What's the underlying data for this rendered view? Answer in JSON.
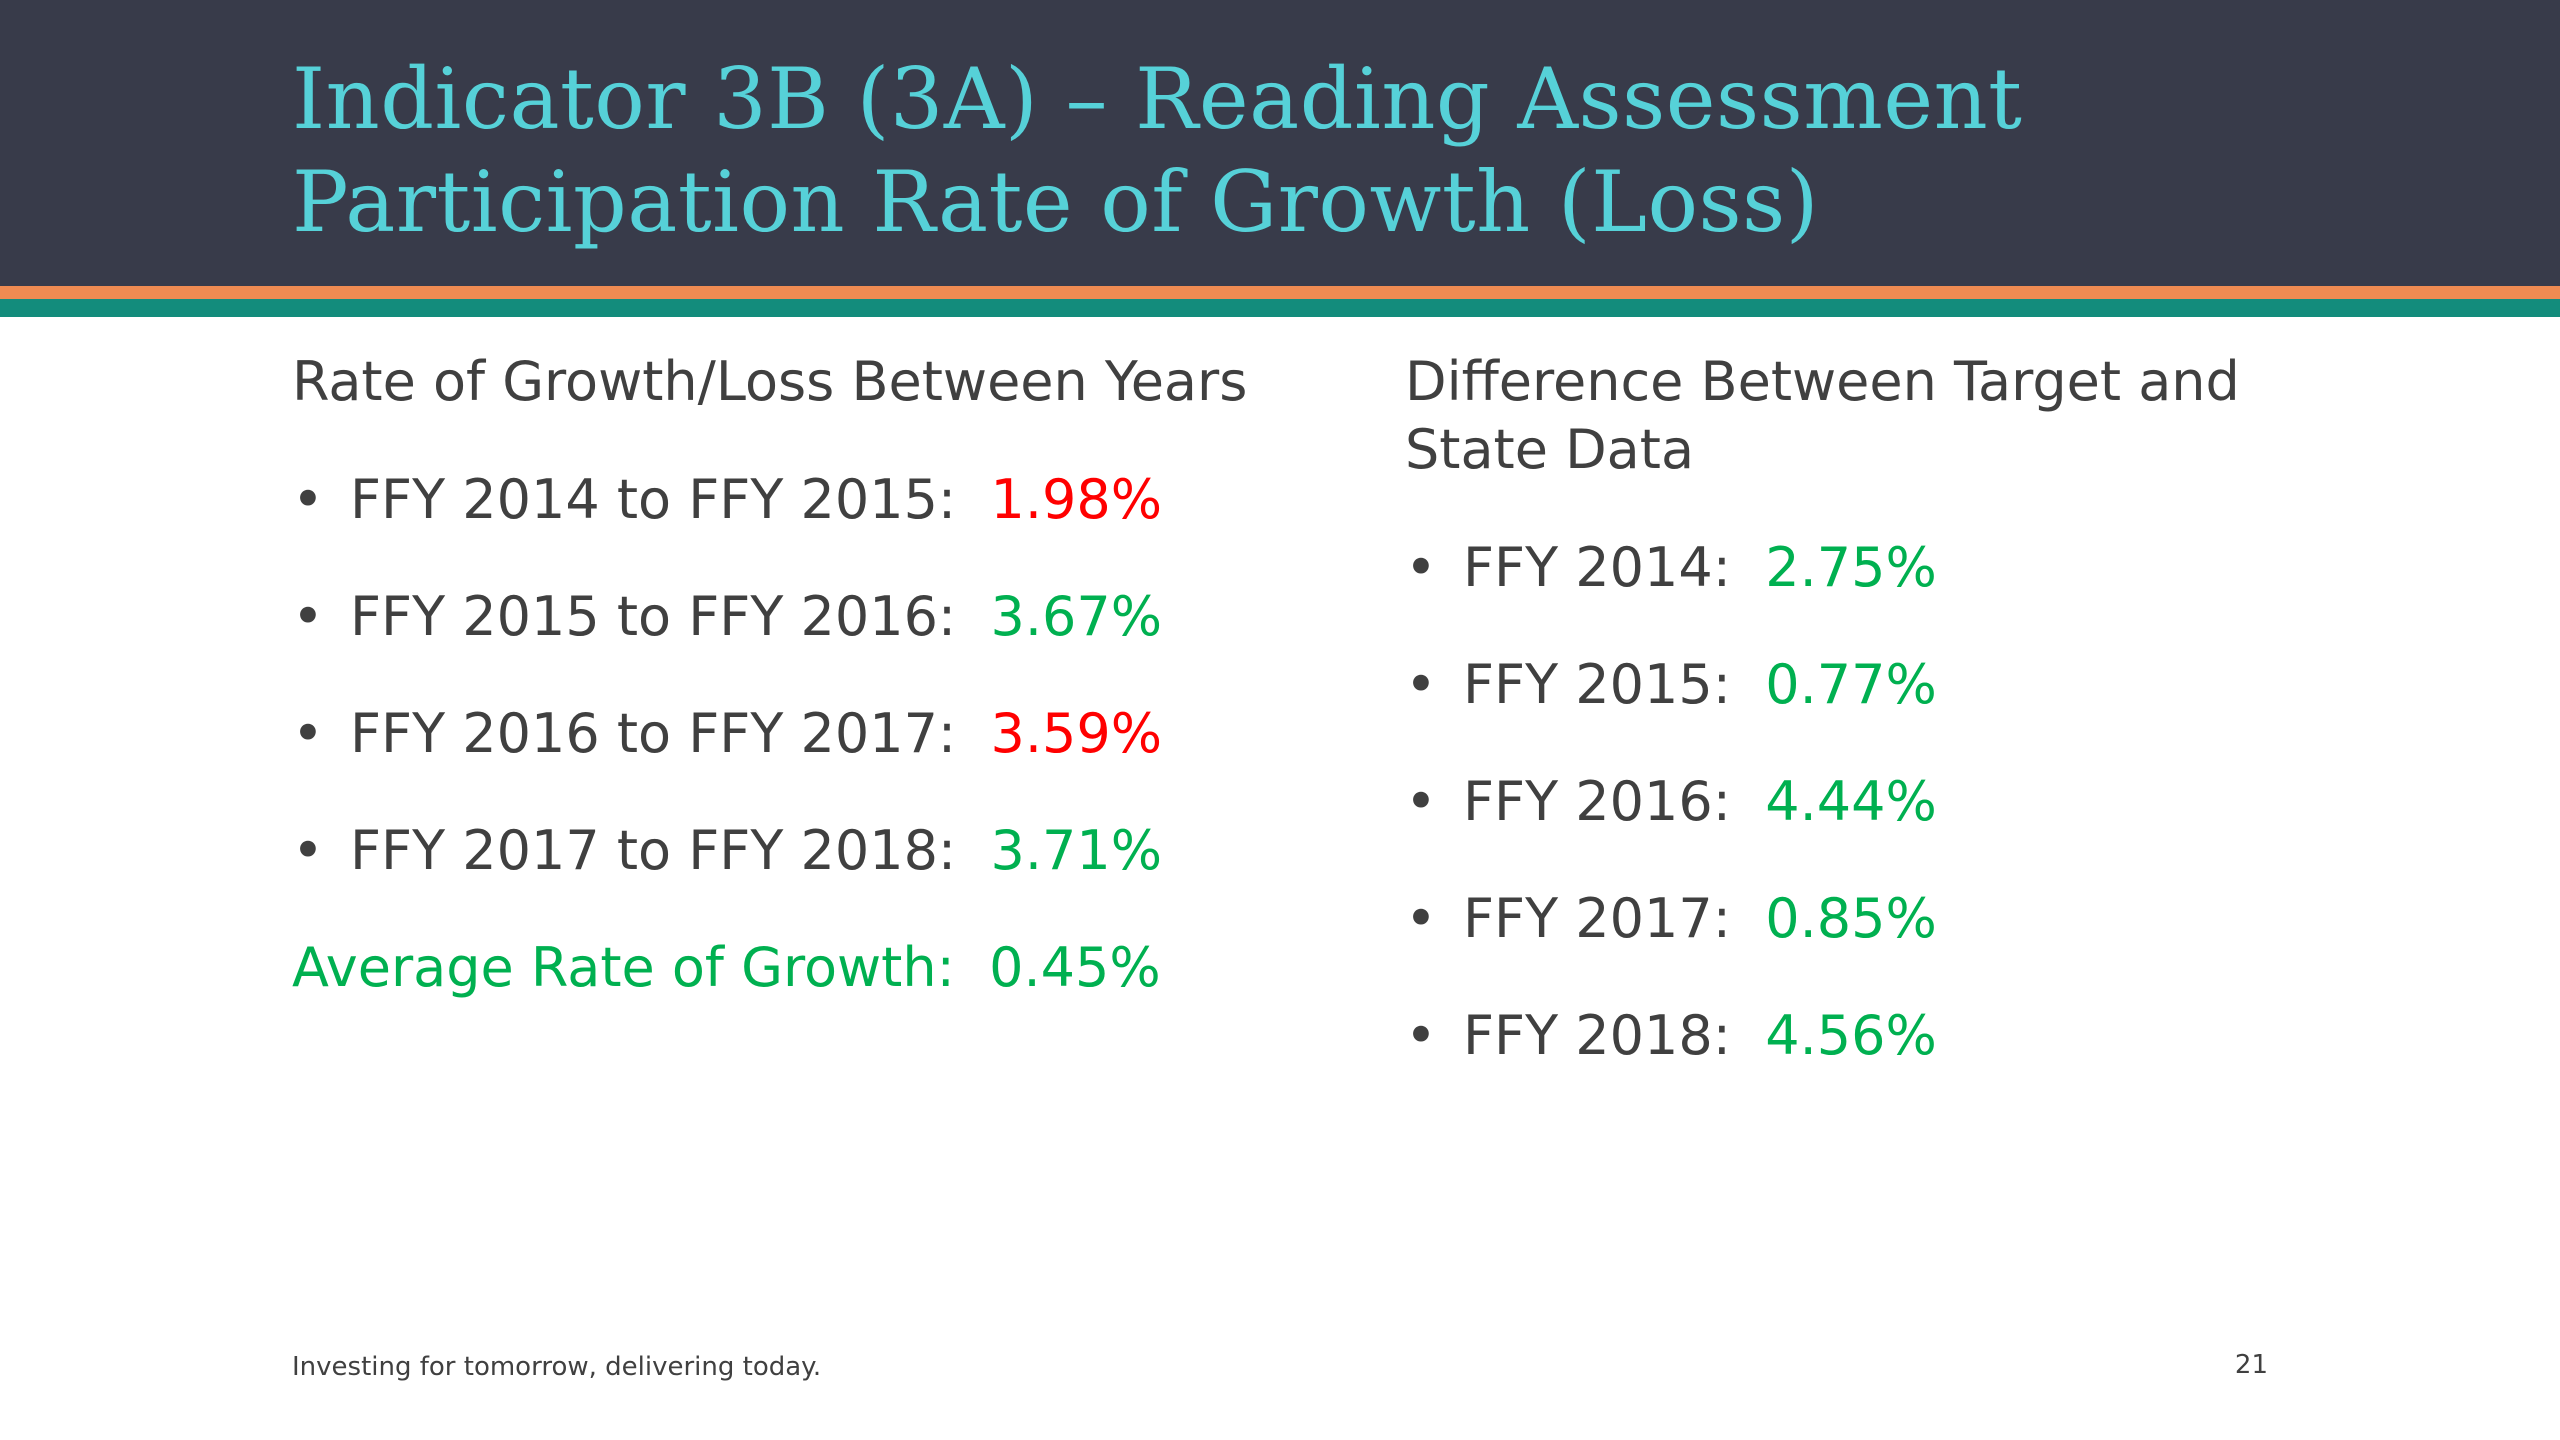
{
  "slide": {
    "title": "Indicator 3B (3A) – Reading Assessment Participation Rate of Growth (Loss)",
    "footer": "Investing for tomorrow, delivering today.",
    "page_number": "21"
  },
  "left_column": {
    "heading": "Rate of Growth/Loss Between Years",
    "items": [
      {
        "label": "FFY 2014 to FFY 2015:",
        "value": "1.98%",
        "status": "red"
      },
      {
        "label": "FFY 2015 to FFY 2016:",
        "value": "3.67%",
        "status": "green"
      },
      {
        "label": "FFY 2016 to FFY 2017:",
        "value": "3.59%",
        "status": "red"
      },
      {
        "label": "FFY 2017 to FFY 2018:",
        "value": "3.71%",
        "status": "green"
      }
    ],
    "average_label": "Average Rate of Growth:",
    "average_value": "0.45%"
  },
  "right_column": {
    "heading": "Difference Between Target and State Data",
    "items": [
      {
        "label": "FFY 2014:",
        "value": "2.75%",
        "status": "green"
      },
      {
        "label": "FFY 2015:",
        "value": "0.77%",
        "status": "green"
      },
      {
        "label": "FFY 2016:",
        "value": "4.44%",
        "status": "green"
      },
      {
        "label": "FFY 2017:",
        "value": "0.85%",
        "status": "green"
      },
      {
        "label": "FFY 2018:",
        "value": "4.56%",
        "status": "green"
      }
    ]
  },
  "bullet_glyph": "•",
  "colors": {
    "header_bg": "#383b4a",
    "title": "#56d1d8",
    "stripe_orange": "#ef8b52",
    "stripe_teal": "#138c7c",
    "text": "#404040",
    "red": "#ff0000",
    "green": "#00b050"
  }
}
